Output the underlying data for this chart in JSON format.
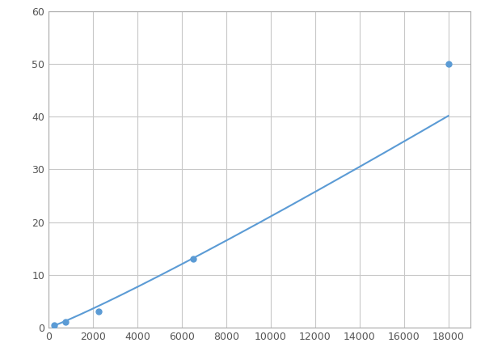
{
  "x_points": [
    250,
    750,
    2250,
    6500,
    18000
  ],
  "y_points": [
    0.5,
    1.0,
    3.0,
    13.0,
    50.0
  ],
  "line_color": "#5b9bd5",
  "marker_color": "#5b9bd5",
  "marker_size": 5,
  "linewidth": 1.5,
  "xlim": [
    0,
    19000
  ],
  "ylim": [
    0,
    60
  ],
  "xticks": [
    0,
    2000,
    4000,
    6000,
    8000,
    10000,
    12000,
    14000,
    16000,
    18000
  ],
  "yticks": [
    0,
    10,
    20,
    30,
    40,
    50,
    60
  ],
  "grid_color": "#c8c8c8",
  "background_color": "#ffffff",
  "figure_bg": "#ffffff"
}
